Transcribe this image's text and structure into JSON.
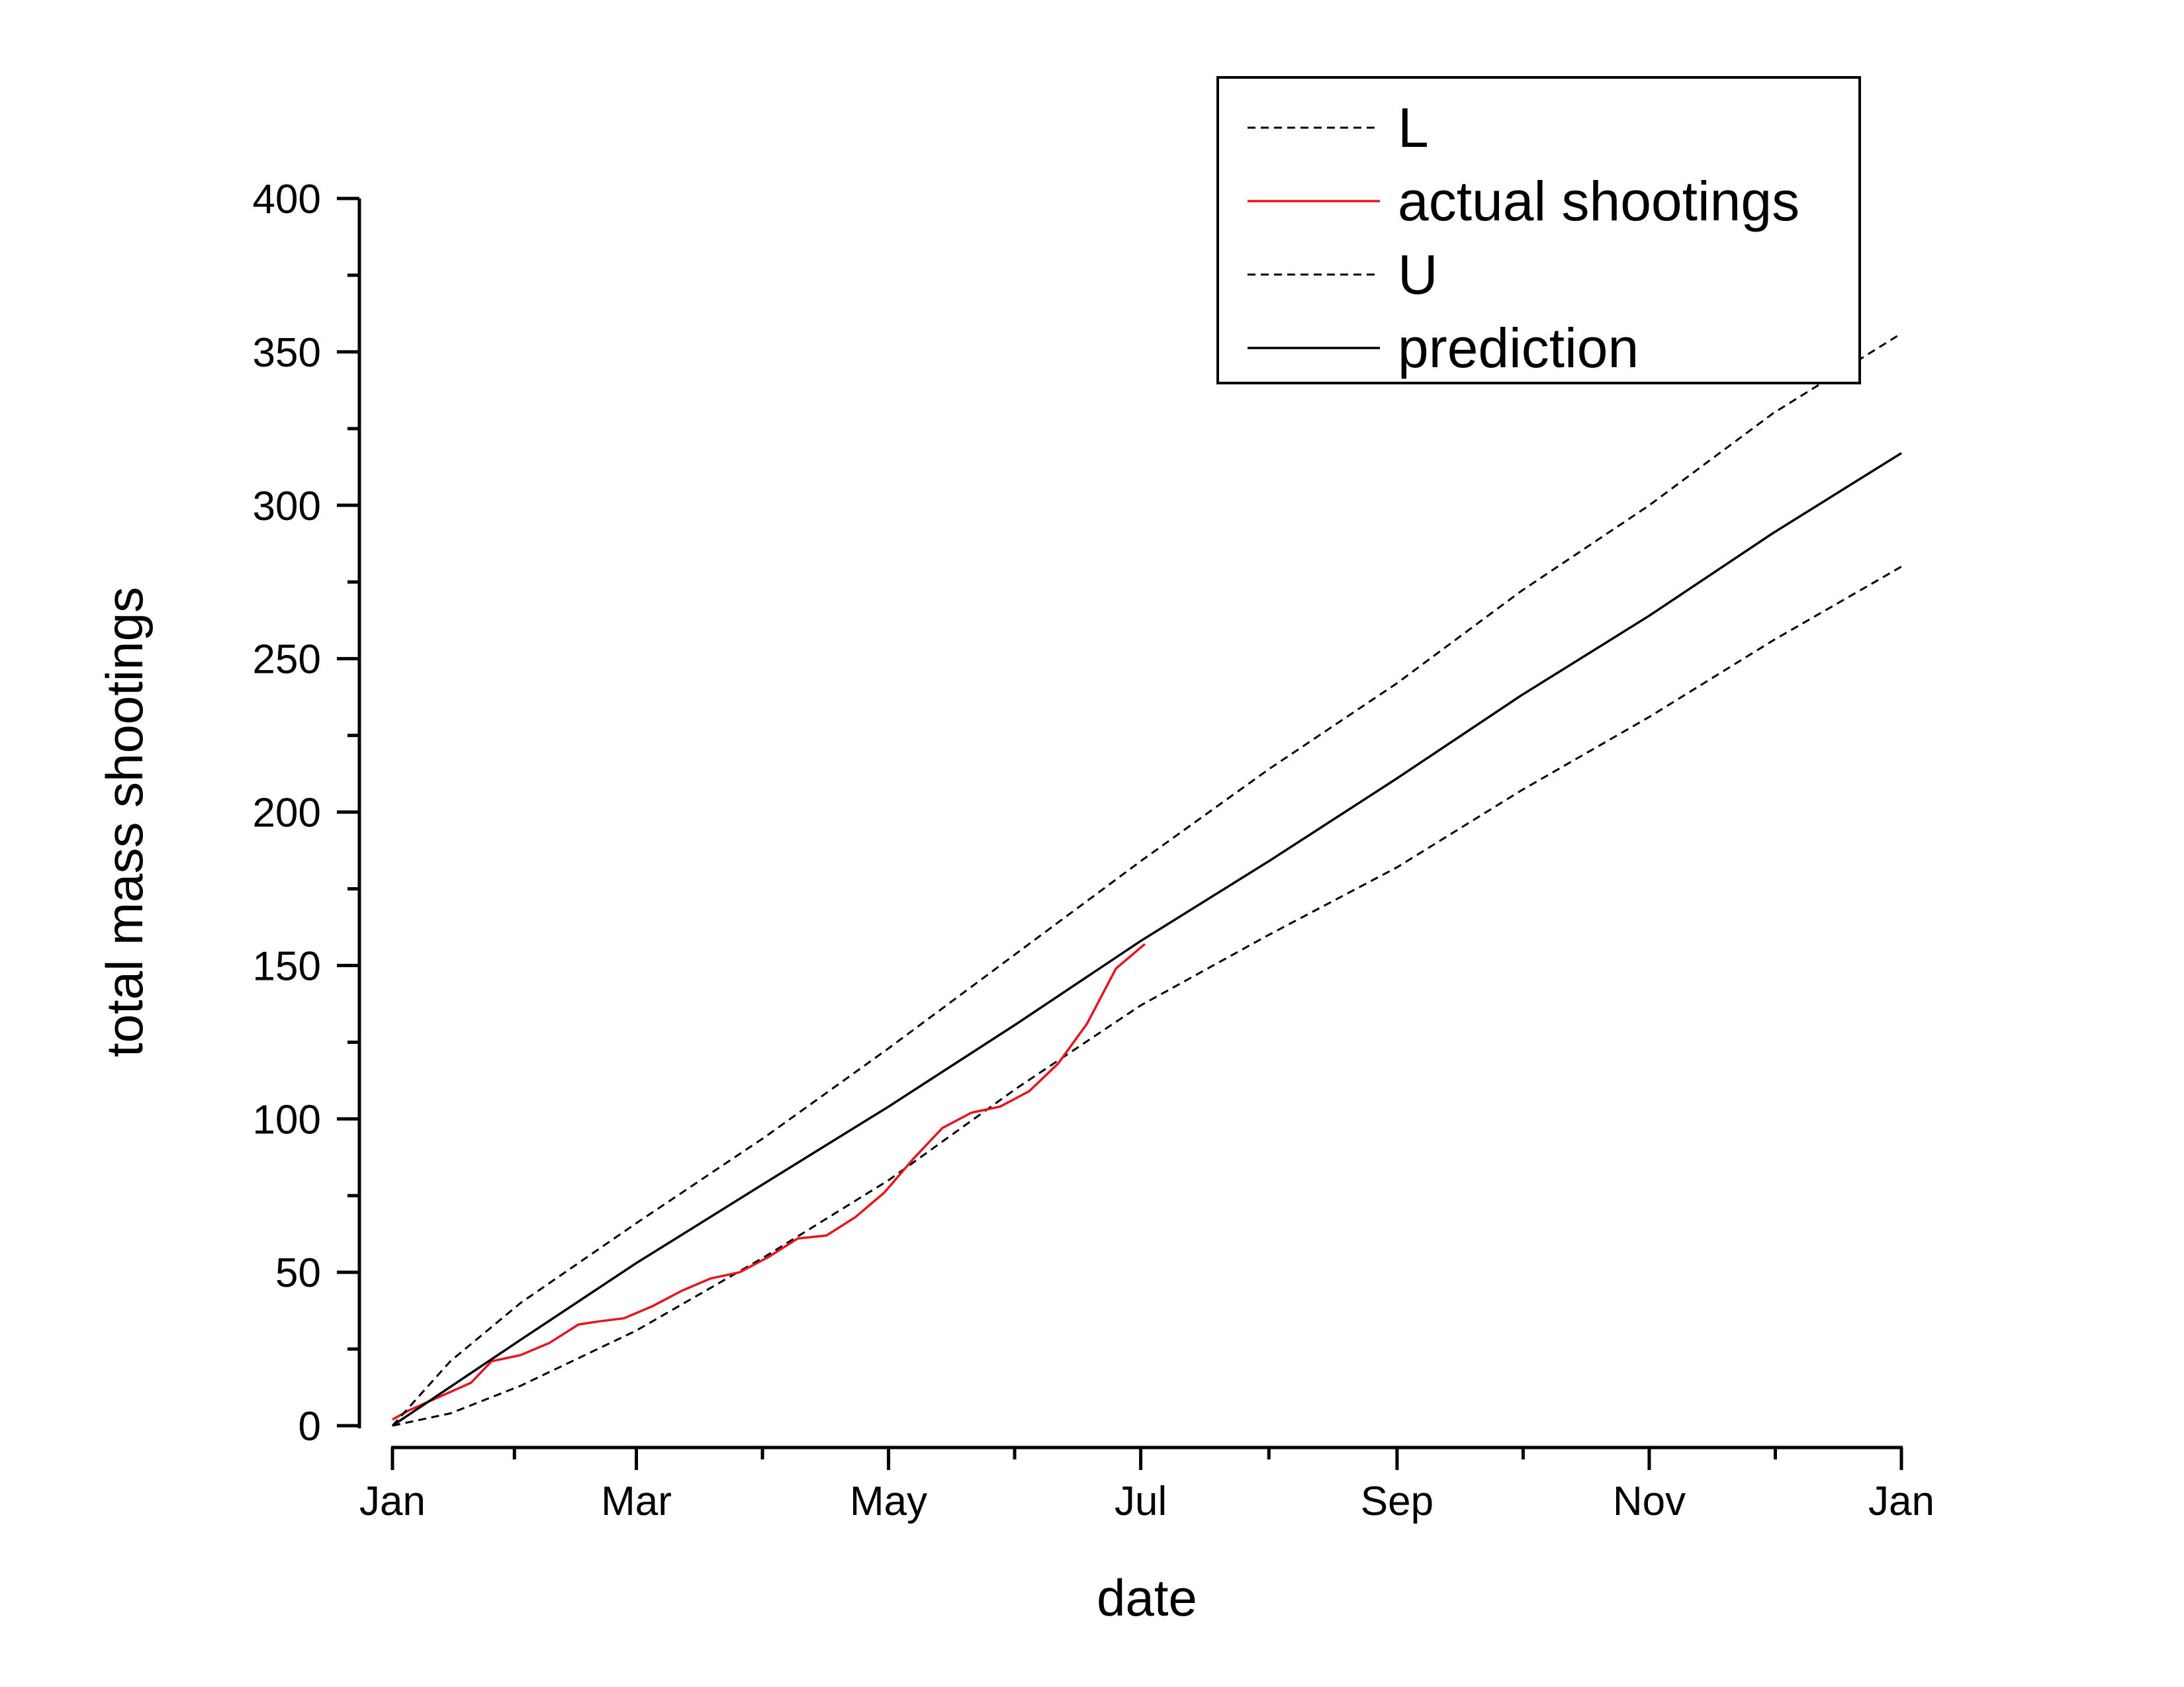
{
  "chart_data": {
    "type": "line",
    "xlabel": "date",
    "ylabel": "total mass shootings",
    "ylim": [
      0,
      400
    ],
    "xlim": [
      "2018-01-01",
      "2019-01-01"
    ],
    "yticks": [
      0,
      50,
      100,
      150,
      200,
      250,
      300,
      350,
      400
    ],
    "ytick_labels": [
      "0",
      "50",
      "100",
      "150",
      "200",
      "250",
      "300",
      "350",
      "400"
    ],
    "xticks": [
      "2018-01-01",
      "2018-03-01",
      "2018-05-01",
      "2018-07-01",
      "2018-09-01",
      "2018-11-01",
      "2019-01-01"
    ],
    "xtick_labels": [
      "Jan",
      "Mar",
      "May",
      "Jul",
      "Sep",
      "Nov",
      "Jan"
    ],
    "grid": false,
    "legend_position": "top-right",
    "colors": {
      "black": "#000000",
      "red": "#e8141b"
    },
    "series": [
      {
        "name": "L",
        "style": "dashed",
        "color": "#000000",
        "x": [
          "2018-01-01",
          "2018-01-15",
          "2018-02-01",
          "2018-03-01",
          "2018-04-01",
          "2018-05-01",
          "2018-06-01",
          "2018-07-01",
          "2018-08-01",
          "2018-09-01",
          "2018-10-01",
          "2018-11-01",
          "2018-12-01",
          "2019-01-01"
        ],
        "y": [
          0,
          4,
          13,
          31,
          55,
          80,
          110,
          137,
          160,
          182,
          207,
          231,
          256,
          280
        ]
      },
      {
        "name": "actual shootings",
        "style": "solid",
        "color": "#e8141b",
        "x": [
          "2018-01-01",
          "2018-01-05",
          "2018-01-10",
          "2018-01-15",
          "2018-01-20",
          "2018-01-25",
          "2018-02-01",
          "2018-02-08",
          "2018-02-15",
          "2018-02-20",
          "2018-02-26",
          "2018-03-05",
          "2018-03-12",
          "2018-03-19",
          "2018-03-26",
          "2018-04-02",
          "2018-04-09",
          "2018-04-16",
          "2018-04-23",
          "2018-04-30",
          "2018-05-07",
          "2018-05-14",
          "2018-05-21",
          "2018-05-28",
          "2018-06-04",
          "2018-06-11",
          "2018-06-18",
          "2018-06-25",
          "2018-07-02"
        ],
        "y": [
          2,
          5,
          8,
          11,
          14,
          21,
          23,
          27,
          33,
          34,
          35,
          39,
          44,
          48,
          50,
          55,
          61,
          62,
          68,
          76,
          87,
          97,
          102,
          104,
          109,
          118,
          131,
          149,
          157
        ]
      },
      {
        "name": "U",
        "style": "dashed",
        "color": "#000000",
        "x": [
          "2018-01-01",
          "2018-01-15",
          "2018-02-01",
          "2018-03-01",
          "2018-04-01",
          "2018-05-01",
          "2018-06-01",
          "2018-07-01",
          "2018-08-01",
          "2018-09-01",
          "2018-10-01",
          "2018-11-01",
          "2018-12-01",
          "2019-01-01"
        ],
        "y": [
          0,
          21,
          40,
          66,
          94,
          123,
          154,
          184,
          214,
          242,
          272,
          300,
          330,
          356
        ]
      },
      {
        "name": "prediction",
        "style": "solid",
        "color": "#000000",
        "x": [
          "2018-01-01",
          "2018-02-01",
          "2018-03-01",
          "2018-04-01",
          "2018-05-01",
          "2018-06-01",
          "2018-07-01",
          "2018-08-01",
          "2018-09-01",
          "2018-10-01",
          "2018-11-01",
          "2018-12-01",
          "2019-01-01"
        ],
        "y": [
          0,
          28,
          53,
          79,
          104,
          131,
          158,
          184,
          211,
          238,
          264,
          291,
          317
        ]
      }
    ]
  }
}
